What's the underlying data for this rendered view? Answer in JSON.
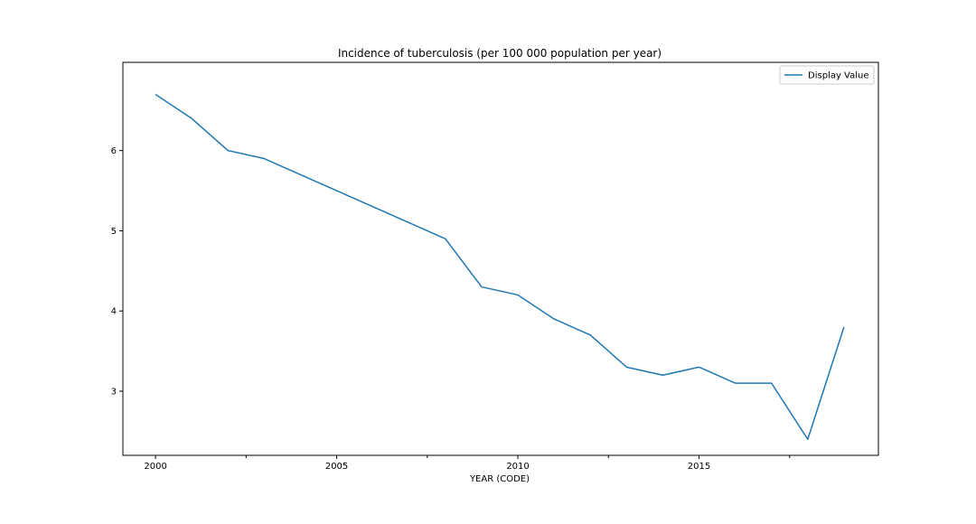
{
  "chart_data": {
    "type": "line",
    "title": "Incidence of tuberculosis (per 100 000 population per year)",
    "xlabel": "YEAR (CODE)",
    "ylabel": "",
    "x": [
      2000,
      2001,
      2002,
      2003,
      2004,
      2005,
      2006,
      2007,
      2008,
      2009,
      2010,
      2011,
      2012,
      2013,
      2014,
      2015,
      2016,
      2017,
      2018,
      2019
    ],
    "series": [
      {
        "name": "Display Value",
        "color": "#1f77b4",
        "values": [
          6.7,
          6.4,
          6.0,
          5.9,
          5.7,
          5.5,
          5.3,
          5.1,
          4.9,
          4.3,
          4.2,
          3.9,
          3.7,
          3.3,
          3.2,
          3.3,
          3.1,
          3.1,
          2.4,
          3.8
        ]
      }
    ],
    "xlim": [
      1999.1,
      2019.95
    ],
    "ylim": [
      2.2,
      7.1
    ],
    "x_major_ticks": [
      2000,
      2005,
      2010,
      2015
    ],
    "x_major_tick_labels": [
      "2000",
      "2005",
      "2010",
      "2015"
    ],
    "x_minor_ticks": [
      2002.5,
      2007.5,
      2012.5,
      2017.5
    ],
    "y_ticks": [
      3,
      4,
      5,
      6
    ],
    "y_tick_labels": [
      "3",
      "4",
      "5",
      "6"
    ],
    "grid": false,
    "legend_position": "upper-right"
  }
}
